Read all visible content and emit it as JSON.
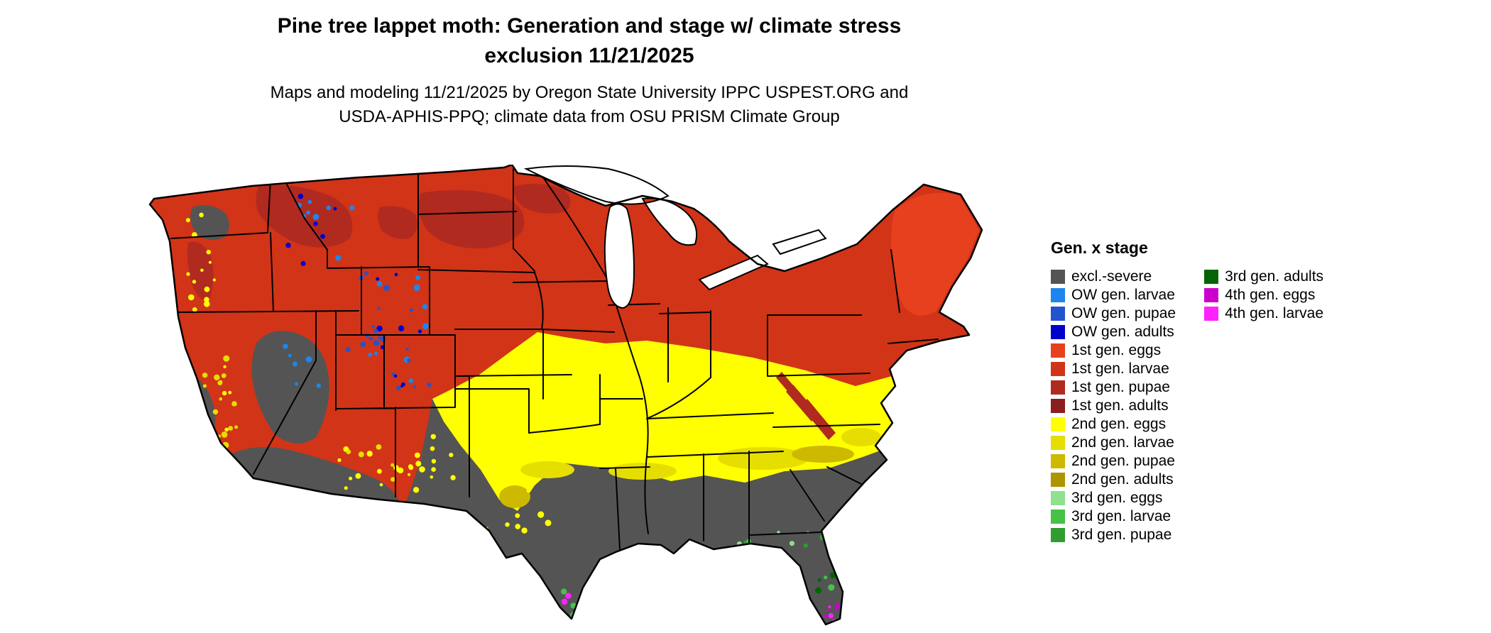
{
  "header": {
    "title_line1": "Pine tree lappet moth: Generation and stage w/ climate stress",
    "title_line2": "exclusion 11/21/2025",
    "subtitle_line1": "Maps and modeling 11/21/2025 by Oregon State University IPPC USPEST.ORG and",
    "subtitle_line2": "USDA-APHIS-PPQ; climate data from OSU PRISM Climate Group"
  },
  "legend": {
    "title": "Gen. x stage",
    "column1": [
      {
        "label": "excl.-severe",
        "color": "#545454"
      },
      {
        "label": "OW gen. larvae",
        "color": "#1C86EE"
      },
      {
        "label": "OW gen. pupae",
        "color": "#2255CD"
      },
      {
        "label": "OW gen. adults",
        "color": "#0000CD"
      },
      {
        "label": "1st gen. eggs",
        "color": "#E6401E"
      },
      {
        "label": "1st gen. larvae",
        "color": "#D23418"
      },
      {
        "label": "1st gen. pupae",
        "color": "#B02A20"
      },
      {
        "label": "1st gen. adults",
        "color": "#8B1E1E"
      },
      {
        "label": "2nd gen. eggs",
        "color": "#FFFF00"
      },
      {
        "label": "2nd gen. larvae",
        "color": "#E6DE00"
      },
      {
        "label": "2nd gen. pupae",
        "color": "#CDB900"
      },
      {
        "label": "2nd gen. adults",
        "color": "#AD9500"
      },
      {
        "label": "3rd gen. eggs",
        "color": "#8FE08F"
      },
      {
        "label": "3rd gen. larvae",
        "color": "#47C147"
      },
      {
        "label": "3rd gen. pupae",
        "color": "#2F9E2F"
      }
    ],
    "column2": [
      {
        "label": "3rd gen. adults",
        "color": "#046404"
      },
      {
        "label": "4th gen. eggs",
        "color": "#CC00CC"
      },
      {
        "label": "4th gen. larvae",
        "color": "#FF22FF"
      }
    ]
  },
  "map": {
    "region": "Continental United States",
    "zones": [
      {
        "category": "1st gen. eggs/larvae/pupae (reds)",
        "area": "Pacific Northwest, northern Rockies, northern Plains, Great Lakes states, New York and New England"
      },
      {
        "category": "2nd gen. eggs/larvae/pupae (yellows)",
        "area": "Central Plains, Corn Belt, Ohio Valley, mid-Atlantic, Tennessee, Texas panhandle"
      },
      {
        "category": "excl.-severe (gray)",
        "area": "Desert Southwest, Great Basin patches, Texas, Gulf Coast states, Florida, southern Atlantic coastal plain"
      },
      {
        "category": "OW gen. larvae/pupae/adults (blues)",
        "area": "High-elevation Rocky Mountains"
      },
      {
        "category": "3rd/4th gen. stages (greens and magenta)",
        "area": "Scattered along Gulf Coast, central and southern Florida, southern Texas tip"
      }
    ]
  }
}
